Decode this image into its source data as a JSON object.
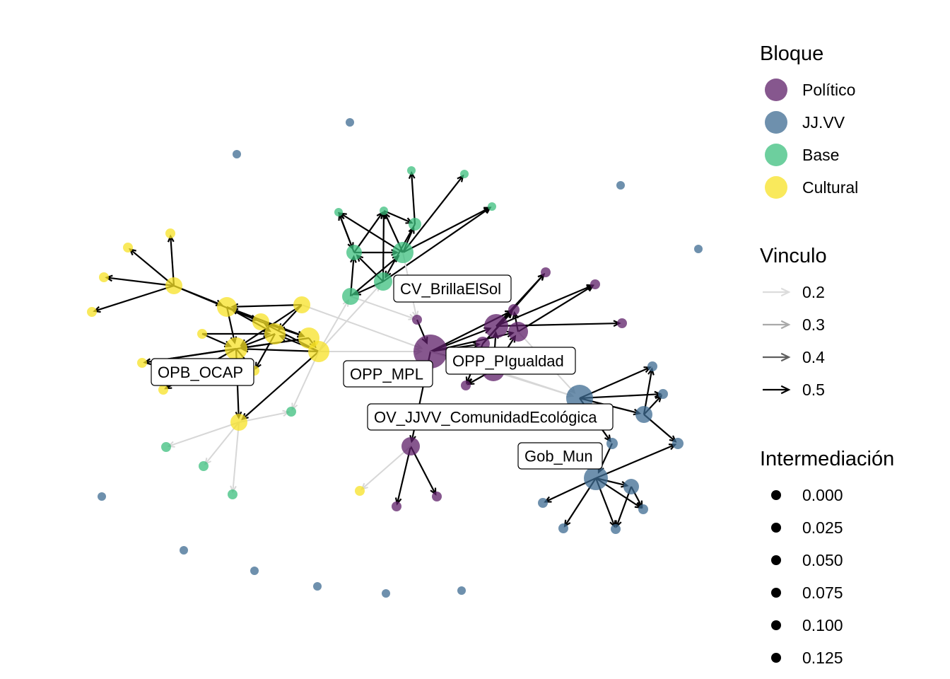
{
  "colors": {
    "Político": "#5d1f68",
    "JJ.VV": "#3e6b91",
    "Base": "#3cbf7d",
    "Cultural": "#f7e125",
    "edge_dark": "#000000",
    "edge_light": "#d7d7d7"
  },
  "labels": {
    "CV_BrillaElSol": "CV_BrillaElSol",
    "OPP_PIgualdad": "OPP_PIgualdad",
    "OPB_OCAP": "OPB_OCAP",
    "OPP_MPL": "OPP_MPL",
    "OV_JJVV": "OV_JJVV_ComunidadEcológica",
    "Gob_Mun": "Gob_Mun"
  },
  "legend": {
    "bloque_title": "Bloque",
    "bloque_items": [
      "Político",
      "JJ.VV",
      "Base",
      "Cultural"
    ],
    "vinculo_title": "Vinculo",
    "vinculo_items": [
      "0.2",
      "0.3",
      "0.4",
      "0.5"
    ],
    "intermed_title": "Intermediación",
    "intermed_items": [
      "0.000",
      "0.025",
      "0.050",
      "0.075",
      "0.100",
      "0.125"
    ]
  }
}
